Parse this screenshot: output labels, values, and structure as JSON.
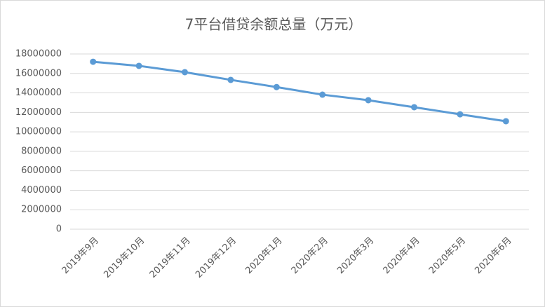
{
  "chart_data": {
    "type": "line",
    "title": "7平台借贷余额总量（万元）",
    "categories": [
      "2019年9月",
      "2019年10月",
      "2019年11月",
      "2019年12月",
      "2020年1月",
      "2020年2月",
      "2020年3月",
      "2020年4月",
      "2020年5月",
      "2020年6月"
    ],
    "series": [
      {
        "color": "#5b9bd5",
        "values": [
          17200000,
          16780000,
          16130000,
          15340000,
          14600000,
          13820000,
          13250000,
          12530000,
          11800000,
          11090000
        ]
      }
    ],
    "ylim": [
      0,
      18000000
    ],
    "yticks": [
      0,
      2000000,
      4000000,
      6000000,
      8000000,
      10000000,
      12000000,
      14000000,
      16000000,
      18000000
    ],
    "grid": true
  }
}
